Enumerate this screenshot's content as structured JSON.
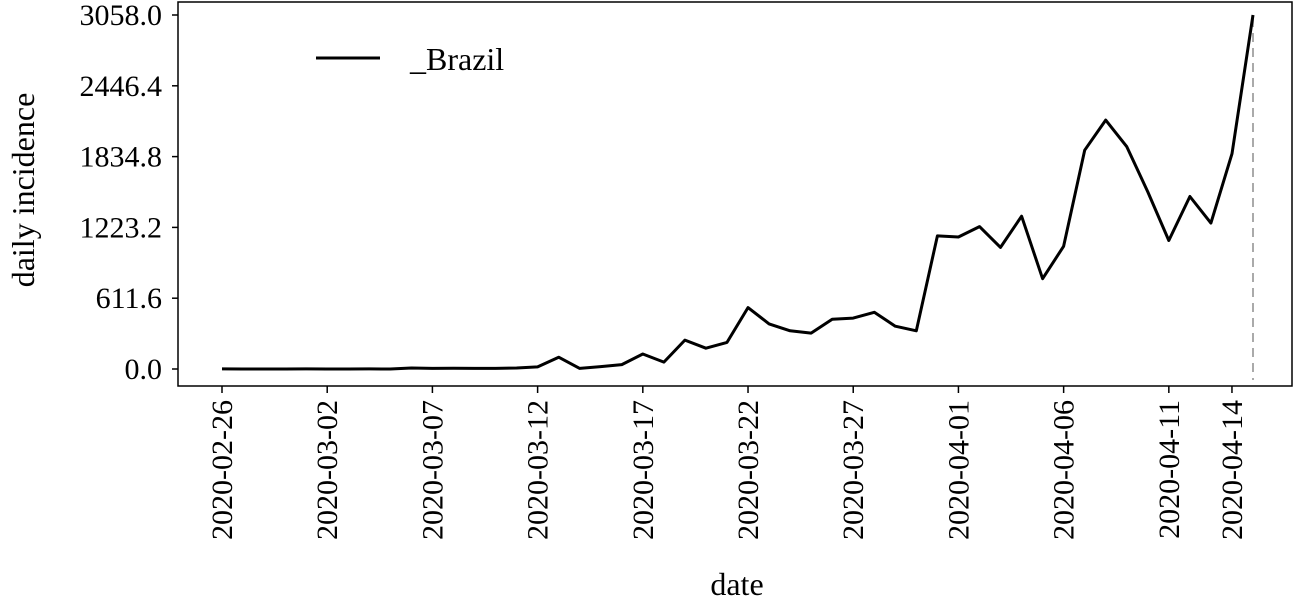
{
  "chart_data": {
    "type": "line",
    "xlabel": "date",
    "ylabel": "daily incidence",
    "ylim": [
      0.0,
      3058.0
    ],
    "yticks": [
      "0.0",
      "611.6",
      "1223.2",
      "1834.8",
      "2446.4",
      "3058.0"
    ],
    "xticks": [
      "2020-02-26",
      "2020-03-02",
      "2020-03-07",
      "2020-03-12",
      "2020-03-17",
      "2020-03-22",
      "2020-03-27",
      "2020-04-01",
      "2020-04-06",
      "2020-04-11",
      "2020-04-14"
    ],
    "legend": {
      "position": "top-left",
      "entries": [
        "_Brazil"
      ]
    },
    "marker_line": {
      "x": "2020-04-15",
      "style": "dashed",
      "color": "#aaaaaa"
    },
    "colors": {
      "series": "#000000",
      "marker": "#aaaaaa"
    },
    "series": [
      {
        "name": "_Brazil",
        "x": [
          "2020-02-26",
          "2020-02-27",
          "2020-02-28",
          "2020-02-29",
          "2020-03-01",
          "2020-03-02",
          "2020-03-03",
          "2020-03-04",
          "2020-03-05",
          "2020-03-06",
          "2020-03-07",
          "2020-03-08",
          "2020-03-09",
          "2020-03-10",
          "2020-03-11",
          "2020-03-12",
          "2020-03-13",
          "2020-03-14",
          "2020-03-15",
          "2020-03-16",
          "2020-03-17",
          "2020-03-18",
          "2020-03-19",
          "2020-03-20",
          "2020-03-21",
          "2020-03-22",
          "2020-03-23",
          "2020-03-24",
          "2020-03-25",
          "2020-03-26",
          "2020-03-27",
          "2020-03-28",
          "2020-03-29",
          "2020-03-30",
          "2020-03-31",
          "2020-04-01",
          "2020-04-02",
          "2020-04-03",
          "2020-04-04",
          "2020-04-05",
          "2020-04-06",
          "2020-04-07",
          "2020-04-08",
          "2020-04-09",
          "2020-04-10",
          "2020-04-11",
          "2020-04-12",
          "2020-04-13",
          "2020-04-14",
          "2020-04-15"
        ],
        "values": [
          1,
          0,
          0,
          0,
          1,
          0,
          0,
          1,
          0,
          9,
          5,
          7,
          5,
          5,
          9,
          18,
          102,
          5,
          21,
          38,
          130,
          60,
          250,
          180,
          230,
          530,
          390,
          330,
          310,
          430,
          440,
          490,
          370,
          330,
          1150,
          1140,
          1230,
          1050,
          1320,
          780,
          1060,
          1890,
          2150,
          1920,
          1530,
          1110,
          1490,
          1260,
          1860,
          3058
        ]
      }
    ]
  }
}
